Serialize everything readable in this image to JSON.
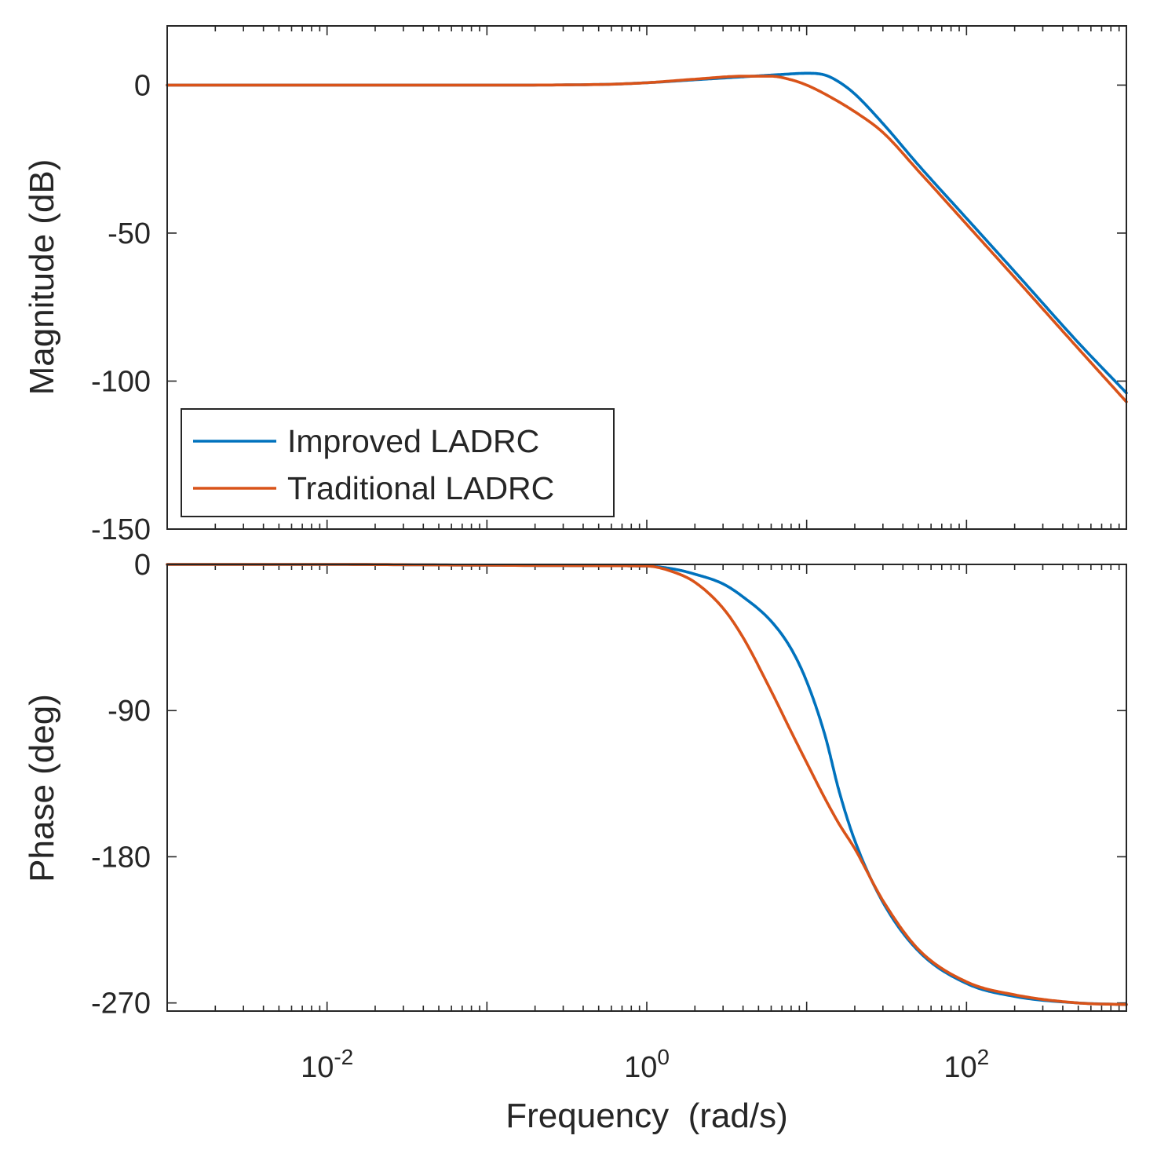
{
  "chart_data": {
    "type": "line",
    "title": "",
    "xlabel": "Frequency  (rad/s)",
    "xscale": "log",
    "xlim": [
      0.001,
      1000
    ],
    "xticks": [
      {
        "value": 0.01,
        "base": "10",
        "exp": "-2"
      },
      {
        "value": 1,
        "base": "10",
        "exp": "0"
      },
      {
        "value": 100,
        "base": "10",
        "exp": "2"
      }
    ],
    "legend": {
      "placement": "bottom-left of magnitude panel",
      "entries": [
        {
          "label": "Improved LADRC",
          "color": "#0072BD"
        },
        {
          "label": "Traditional LADRC",
          "color": "#D95319"
        }
      ]
    },
    "panels": [
      {
        "name": "magnitude",
        "ylabel": "Magnitude (dB)",
        "ylim": [
          -150,
          20
        ],
        "yticks": [
          0,
          -50,
          -100,
          -150
        ],
        "ytick_labels": [
          "0",
          "-50",
          "-100",
          "-150"
        ],
        "series": [
          {
            "name": "Improved LADRC",
            "color": "#0072BD",
            "x": [
              0.001,
              0.01,
              0.1,
              0.5,
              1,
              2,
              4,
              7,
              10,
              13,
              16,
              20,
              30,
              50,
              100,
              200,
              500,
              1000
            ],
            "y": [
              0,
              0,
              0,
              0.2,
              0.8,
              1.8,
              2.8,
              3.6,
              4.0,
              3.4,
              1.0,
              -3,
              -13,
              -27,
              -45,
              -63,
              -87,
              -104
            ]
          },
          {
            "name": "Traditional LADRC",
            "color": "#D95319",
            "x": [
              0.001,
              0.01,
              0.1,
              0.5,
              1,
              2,
              4,
              6,
              8,
              10,
              13,
              20,
              30,
              50,
              100,
              200,
              500,
              1000
            ],
            "y": [
              0,
              0,
              0,
              0.2,
              0.8,
              2.0,
              3.0,
              3.0,
              1.8,
              0,
              -3,
              -9,
              -16,
              -29,
              -47,
              -65,
              -89,
              -107
            ]
          }
        ]
      },
      {
        "name": "phase",
        "ylabel": "Phase (deg)",
        "ylim": [
          -275,
          0
        ],
        "yticks": [
          0,
          -90,
          -180,
          -270
        ],
        "ytick_labels": [
          "0",
          "-90",
          "-180",
          "-270"
        ],
        "series": [
          {
            "name": "Improved LADRC",
            "color": "#0072BD",
            "x": [
              0.001,
              0.01,
              0.1,
              0.5,
              1,
              1.5,
              2,
              3,
              4,
              6,
              8,
              10,
              13,
              16,
              20,
              30,
              50,
              100,
              200,
              500,
              1000
            ],
            "y": [
              0,
              0,
              -0.5,
              -0.8,
              -1,
              -3,
              -6,
              -12,
              -20,
              -35,
              -52,
              -72,
              -105,
              -140,
              -170,
              -208,
              -238,
              -258,
              -266,
              -270,
              -271
            ]
          },
          {
            "name": "Traditional LADRC",
            "color": "#D95319",
            "x": [
              0.001,
              0.01,
              0.1,
              0.5,
              1,
              1.5,
              2,
              3,
              4,
              6,
              8,
              10,
              13,
              16,
              20,
              30,
              50,
              100,
              200,
              500,
              1000
            ],
            "y": [
              0,
              0,
              -0.5,
              -0.8,
              -1,
              -5,
              -11,
              -27,
              -45,
              -78,
              -103,
              -122,
              -144,
              -160,
              -175,
              -207,
              -237,
              -257,
              -265,
              -270,
              -271
            ]
          }
        ]
      }
    ]
  }
}
